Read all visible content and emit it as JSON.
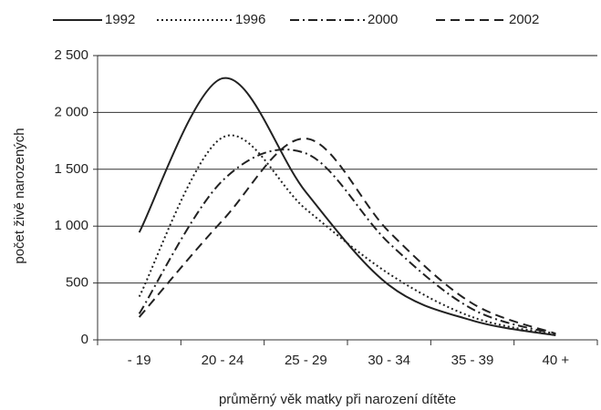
{
  "chart_data": {
    "type": "line",
    "xlabel": "průměrný věk matky při narození dítěte",
    "ylabel": "počet živě narozených",
    "categories": [
      "- 19",
      "20 - 24",
      "25 - 29",
      "30 - 34",
      "35 - 39",
      "40 +"
    ],
    "series": [
      {
        "name": "1992",
        "color": "#222222",
        "style": "solid",
        "values": [
          945,
          2300,
          1300,
          480,
          170,
          40
        ]
      },
      {
        "name": "1996",
        "color": "#222222",
        "style": "dotted",
        "values": [
          380,
          1780,
          1150,
          580,
          200,
          45
        ]
      },
      {
        "name": "2000",
        "color": "#222222",
        "style": "dashdot",
        "values": [
          230,
          1400,
          1640,
          850,
          270,
          50
        ]
      },
      {
        "name": "2002",
        "color": "#222222",
        "style": "dashed",
        "values": [
          200,
          1050,
          1770,
          950,
          320,
          55
        ]
      }
    ],
    "ylim": [
      0,
      2500
    ],
    "yticks": [
      0,
      500,
      {
        "value": 1000,
        "label": "1 000"
      },
      {
        "value": 1500,
        "label": "1 500"
      },
      {
        "value": 2000,
        "label": "2 000"
      },
      {
        "value": 2500,
        "label": "2 500"
      }
    ],
    "grid": true,
    "legend": "top"
  }
}
